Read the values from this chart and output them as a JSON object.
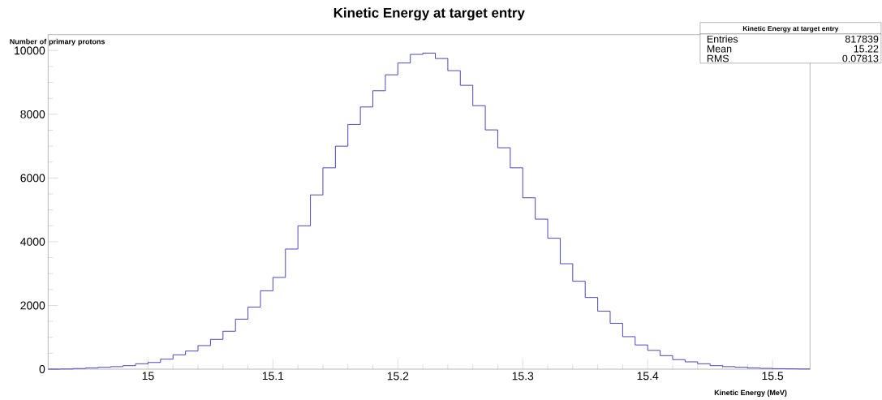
{
  "chart_data": {
    "type": "histogram",
    "title": "Kinetic Energy at target entry",
    "xlabel": "Kinetic Energy (MeV)",
    "ylabel": "Number of primary protons",
    "bins": [
      14.92,
      14.93,
      14.94,
      14.95,
      14.96,
      14.97,
      14.98,
      14.99,
      15.0,
      15.01,
      15.02,
      15.03,
      15.04,
      15.05,
      15.06,
      15.07,
      15.08,
      15.09,
      15.1,
      15.11,
      15.12,
      15.13,
      15.14,
      15.15,
      15.16,
      15.17,
      15.18,
      15.19,
      15.2,
      15.21,
      15.22,
      15.23,
      15.24,
      15.25,
      15.26,
      15.27,
      15.28,
      15.29,
      15.3,
      15.31,
      15.32,
      15.33,
      15.34,
      15.35,
      15.36,
      15.37,
      15.38,
      15.39,
      15.4,
      15.41,
      15.42,
      15.43,
      15.44,
      15.45,
      15.46,
      15.47,
      15.48,
      15.49,
      15.5,
      15.51,
      15.52,
      15.53
    ],
    "values": [
      0,
      5,
      20,
      40,
      60,
      80,
      110,
      170,
      210,
      315,
      450,
      570,
      740,
      935,
      1190,
      1570,
      1950,
      2460,
      2880,
      3770,
      4500,
      5470,
      6320,
      7000,
      7680,
      8230,
      8740,
      9240,
      9610,
      9880,
      9920,
      9750,
      9370,
      8910,
      8270,
      7510,
      6950,
      6320,
      5380,
      4710,
      4110,
      3310,
      2760,
      2250,
      1820,
      1440,
      1020,
      760,
      590,
      425,
      300,
      230,
      170,
      110,
      80,
      60,
      40,
      25,
      15,
      10,
      5
    ],
    "color": "#1c1cb0",
    "xlim": [
      14.92,
      15.53
    ],
    "ylim": [
      0,
      10500
    ],
    "xticks": [
      15,
      15.1,
      15.2,
      15.3,
      15.4,
      15.5
    ],
    "yticks": [
      0,
      2000,
      4000,
      6000,
      8000,
      10000
    ],
    "annotations": [
      "Kinetic Energy at target entry",
      "Entries",
      "817839",
      "Mean",
      "15.22",
      "RMS",
      "0.07813"
    ]
  }
}
